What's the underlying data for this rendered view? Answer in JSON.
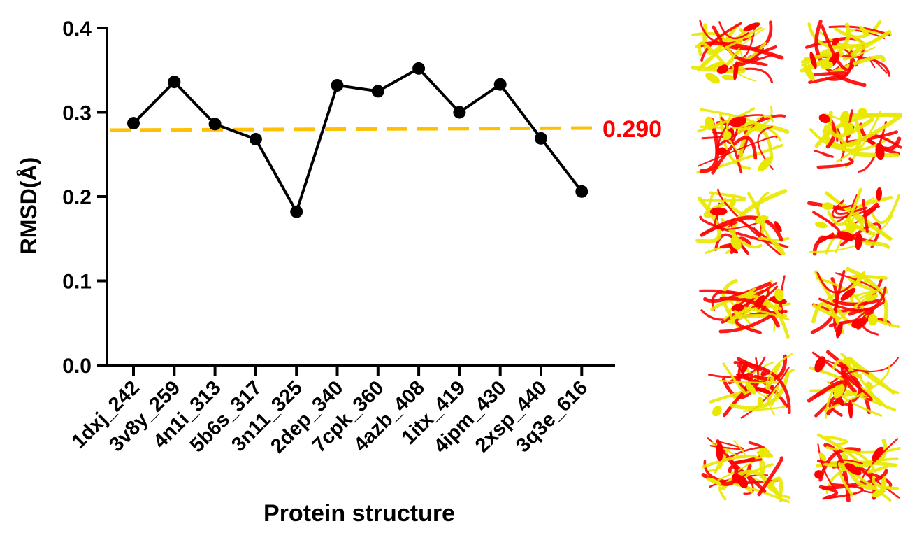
{
  "chart_data": {
    "type": "line",
    "title": "",
    "xlabel": "Protein structure",
    "ylabel": "RMSD(Å)",
    "categories": [
      "1dxj_242",
      "3v8y_259",
      "4n1i_313",
      "5b6s_317",
      "3n11_325",
      "2dep_340",
      "7cpk_360",
      "4azb_408",
      "1itx_419",
      "4ipm_430",
      "2xsp_440",
      "3q3e_616"
    ],
    "series": [
      {
        "values": [
          0.287,
          0.336,
          0.286,
          0.268,
          0.182,
          0.332,
          0.325,
          0.352,
          0.3,
          0.333,
          0.269,
          0.206
        ],
        "color": "#000000",
        "marker": "circle"
      }
    ],
    "reference_line": {
      "value": 0.29,
      "label": "0.290",
      "color": "#FFC000",
      "label_color": "#FF0000",
      "style": "dashed"
    },
    "ylim": [
      0.0,
      0.4
    ],
    "yticks": [
      "0.0",
      "0.1",
      "0.2",
      "0.3",
      "0.4"
    ],
    "grid": false,
    "legend": "none",
    "structure_images": {
      "count": 12,
      "layout": "6 rows x 2 columns",
      "colors": [
        "#FF0000",
        "#E8E800"
      ],
      "description_icon": "protein-ribbon-overlay-icon"
    }
  }
}
